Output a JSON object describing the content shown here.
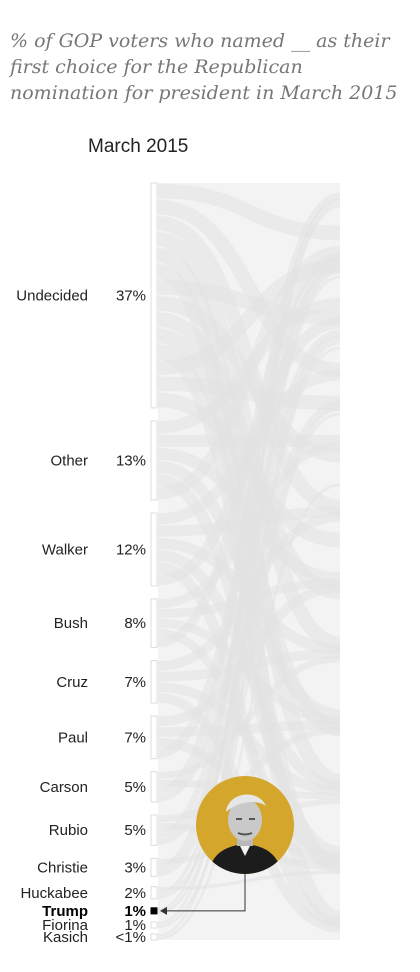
{
  "subtitle": "% of GOP voters who named __ as their first choice for the Republican nomination for president in March 2015",
  "column_header": "March 2015",
  "chart_data": {
    "type": "bar",
    "title": "% of GOP voters who named __ as their first choice for the Republican nomination for president in March 2015",
    "column": "March 2015",
    "categories": [
      "Undecided",
      "Other",
      "Walker",
      "Bush",
      "Cruz",
      "Paul",
      "Carson",
      "Rubio",
      "Christie",
      "Huckabee",
      "Trump",
      "Fiorina",
      "Kasich"
    ],
    "labels": [
      "37%",
      "13%",
      "12%",
      "8%",
      "7%",
      "7%",
      "5%",
      "5%",
      "3%",
      "2%",
      "1%",
      "1%",
      "<1%"
    ],
    "values": [
      37,
      13,
      12,
      8,
      7,
      7,
      5,
      5,
      3,
      2,
      1,
      1,
      0.5
    ],
    "highlight": "Trump",
    "colors": {
      "flow": "#e2e2e2",
      "bar_outline": "#dddddd",
      "highlight": "#000000",
      "photo_bg": "#d4a72c"
    }
  },
  "photo": {
    "icon": "candidate-photo-icon"
  }
}
